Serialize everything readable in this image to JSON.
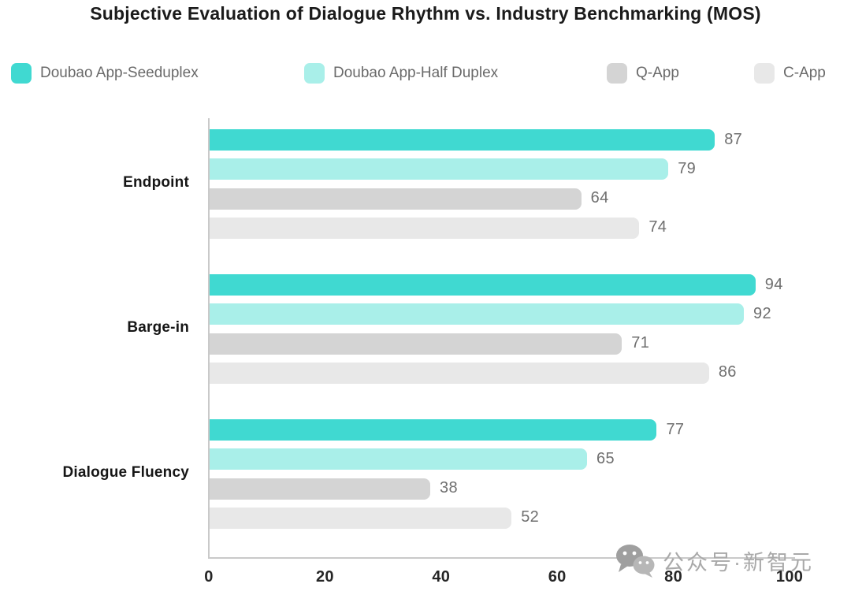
{
  "title": "Subjective Evaluation of Dialogue Rhythm vs. Industry Benchmarking (MOS)",
  "chart_data": {
    "type": "bar",
    "orientation": "horizontal",
    "title": "Subjective Evaluation of Dialogue Rhythm vs. Industry Benchmarking (MOS)",
    "categories": [
      "Endpoint",
      "Barge-in",
      "Dialogue Fluency"
    ],
    "series": [
      {
        "name": "Doubao App-Seeduplex",
        "color": "#40d9d1",
        "values": [
          87,
          94,
          77
        ]
      },
      {
        "name": "Doubao App-Half Duplex",
        "color": "#a9efe9",
        "values": [
          79,
          92,
          65
        ]
      },
      {
        "name": "Q-App",
        "color": "#d4d4d4",
        "values": [
          64,
          71,
          38
        ]
      },
      {
        "name": "C-App",
        "color": "#e8e8e8",
        "values": [
          74,
          86,
          52
        ]
      }
    ],
    "xlim": [
      0,
      100
    ],
    "xticks": [
      0,
      20,
      40,
      60,
      80,
      100
    ],
    "grid": false,
    "legend_position": "top",
    "value_labels": true
  },
  "watermark": {
    "text": "公众号·新智元",
    "icon": "wechat-icon"
  }
}
